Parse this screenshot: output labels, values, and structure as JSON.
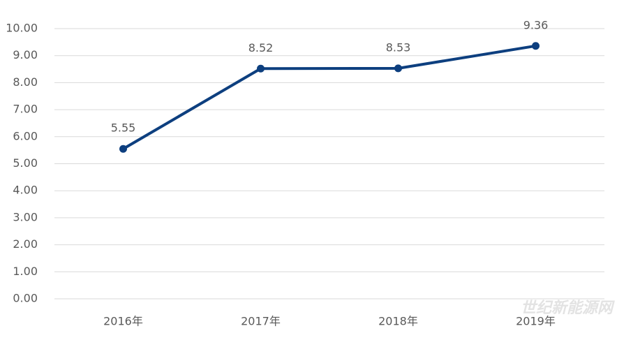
{
  "chart_data": {
    "type": "line",
    "categories": [
      "2016年",
      "2017年",
      "2018年",
      "2019年"
    ],
    "series": [
      {
        "color": "#0d3f7f",
        "values": [
          5.55,
          8.52,
          8.53,
          9.36
        ]
      }
    ],
    "ylim": [
      0,
      10
    ],
    "yticks": [
      {
        "value": 0,
        "label": "0.00"
      },
      {
        "value": 1,
        "label": "1.00"
      },
      {
        "value": 2,
        "label": "2.00"
      },
      {
        "value": 3,
        "label": "3.00"
      },
      {
        "value": 4,
        "label": "4.00"
      },
      {
        "value": 5,
        "label": "5.00"
      },
      {
        "value": 6,
        "label": "6.00"
      },
      {
        "value": 7,
        "label": "7.00"
      },
      {
        "value": 8,
        "label": "8.00"
      },
      {
        "value": 9,
        "label": "9.00"
      },
      {
        "value": 10,
        "label": "10.00"
      }
    ],
    "grid": true,
    "watermark": "世纪新能源网"
  }
}
